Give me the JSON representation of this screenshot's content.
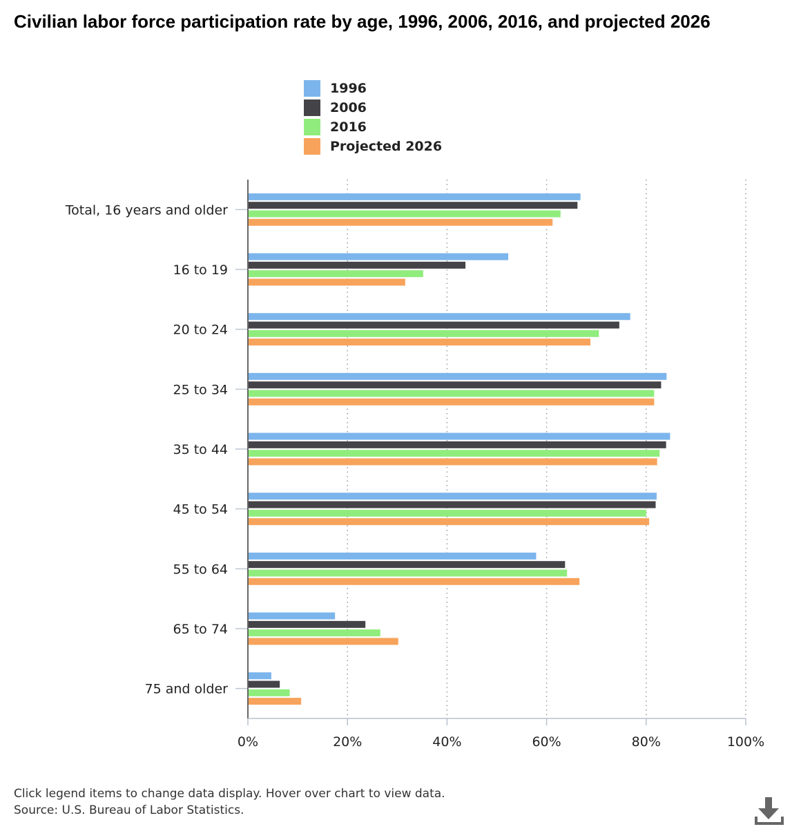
{
  "title": "Civilian labor force participation rate by age, 1996, 2006, 2016, and projected 2026",
  "footer": {
    "note": "Click legend items to change data display. Hover over chart to view data.",
    "source": "Source: U.S. Bureau of Labor Statistics."
  },
  "download_icon": "download-icon",
  "chart_data": {
    "type": "bar",
    "orientation": "horizontal",
    "categories": [
      "Total, 16 years and older",
      "16 to 19",
      "20 to 24",
      "25 to 34",
      "35 to 44",
      "45 to 54",
      "55 to 64",
      "65 to 74",
      "75 and older"
    ],
    "series": [
      {
        "name": "1996",
        "color": "#7cb5ec",
        "values": [
          66.8,
          52.3,
          76.8,
          84.1,
          84.8,
          82.1,
          57.9,
          17.5,
          4.7
        ]
      },
      {
        "name": "2006",
        "color": "#434348",
        "values": [
          66.2,
          43.7,
          74.6,
          83.0,
          84.0,
          81.9,
          63.7,
          23.6,
          6.4
        ]
      },
      {
        "name": "2016",
        "color": "#90ed7d",
        "values": [
          62.8,
          35.2,
          70.5,
          81.6,
          82.7,
          80.0,
          64.1,
          26.6,
          8.4
        ]
      },
      {
        "name": "Projected 2026",
        "color": "#f7a35c",
        "values": [
          61.2,
          31.6,
          68.8,
          81.6,
          82.2,
          80.6,
          66.6,
          30.2,
          10.7
        ]
      }
    ],
    "xlim": [
      0,
      100
    ],
    "ticks": [
      "0%",
      "20%",
      "40%",
      "60%",
      "80%",
      "100%"
    ],
    "grid": "vertical dotted",
    "legend": "top"
  }
}
